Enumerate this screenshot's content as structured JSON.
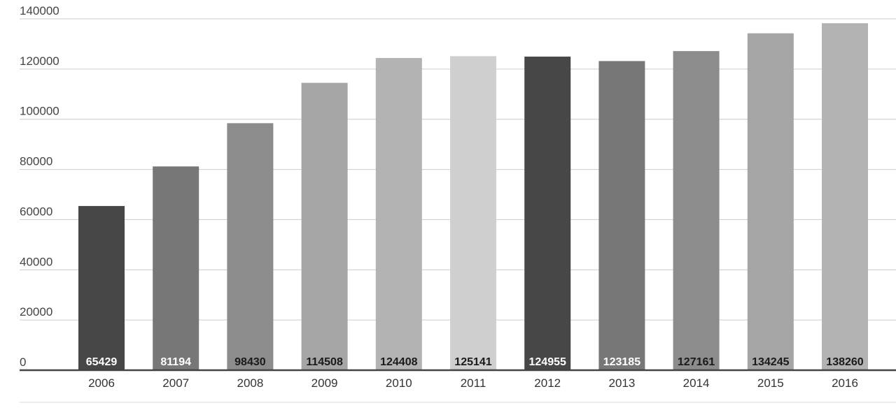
{
  "chart_data": {
    "type": "bar",
    "categories": [
      "2006",
      "2007",
      "2008",
      "2009",
      "2010",
      "2011",
      "2012",
      "2013",
      "2014",
      "2015",
      "2016"
    ],
    "values": [
      65429,
      81194,
      98430,
      114508,
      124408,
      125141,
      124955,
      123185,
      127161,
      134245,
      138260
    ],
    "data_labels": [
      "65429",
      "81194",
      "98430",
      "114508",
      "124408",
      "125141",
      "124955",
      "123185",
      "127161",
      "134245",
      "138260"
    ],
    "y_ticks": [
      0,
      20000,
      40000,
      60000,
      80000,
      100000,
      120000,
      140000
    ],
    "y_tick_labels": [
      "0",
      "20000",
      "40000",
      "60000",
      "80000",
      "100000",
      "120000",
      "140000"
    ],
    "ylim": [
      0,
      140000
    ],
    "grid": true,
    "bar_colors": [
      "#474747",
      "#777777",
      "#8c8c8c",
      "#a5a5a5",
      "#b3b3b3",
      "#cfcfcf",
      "#474747",
      "#777777",
      "#8c8c8c",
      "#a5a5a5",
      "#b3b3b3"
    ],
    "label_colors": [
      "#ffffff",
      "#ffffff",
      "#1a1a1a",
      "#1a1a1a",
      "#1a1a1a",
      "#1a1a1a",
      "#ffffff",
      "#ffffff",
      "#1a1a1a",
      "#1a1a1a",
      "#1a1a1a"
    ],
    "title": "",
    "xlabel": "",
    "ylabel": ""
  }
}
